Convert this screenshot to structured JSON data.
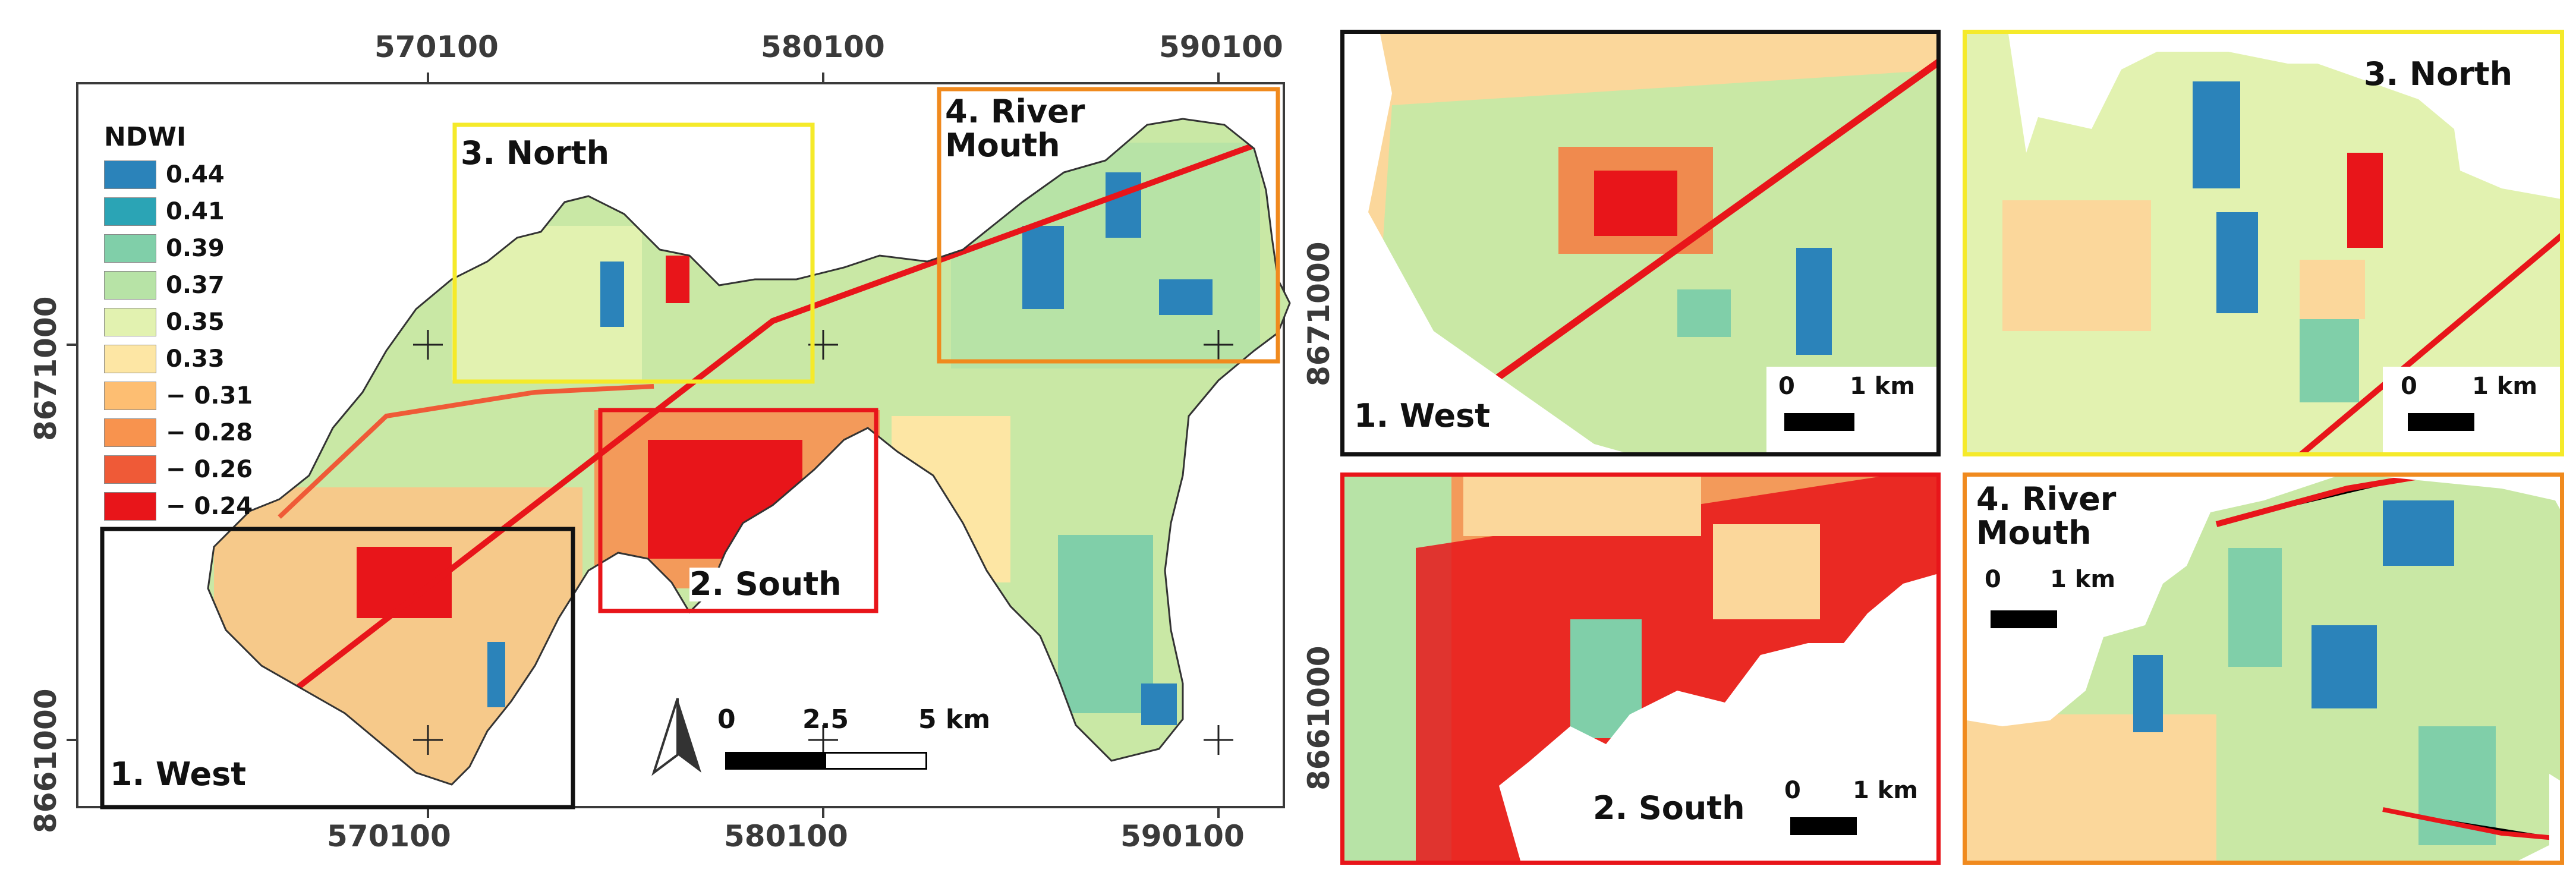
{
  "main_map": {
    "x_ticks": [
      "570100",
      "580100",
      "590100"
    ],
    "y_ticks": [
      "8671000",
      "8661000"
    ],
    "legend": {
      "title": "NDWI",
      "items": [
        {
          "label": "0.44",
          "color": "#2b83ba"
        },
        {
          "label": "0.41",
          "color": "#2ba4b5"
        },
        {
          "label": "0.39",
          "color": "#80cfa9"
        },
        {
          "label": "0.37",
          "color": "#b7e3a6"
        },
        {
          "label": "0.35",
          "color": "#e2f2b0"
        },
        {
          "label": "0.33",
          "color": "#fde6a4"
        },
        {
          "label": "− 0.31",
          "color": "#fdbe72"
        },
        {
          "label": "− 0.28",
          "color": "#f8934e"
        },
        {
          "label": "− 0.26",
          "color": "#ef5a37"
        },
        {
          "label": "− 0.24",
          "color": "#e8151a"
        }
      ]
    },
    "boxes": {
      "west": "1. West",
      "south": "2. South",
      "north": "3. North",
      "river_mouth": "4. River\nMouth"
    },
    "scale_bar": {
      "labels": [
        "0",
        "2.5",
        "5 km"
      ]
    },
    "north_arrow": "north-arrow-icon"
  },
  "panels": {
    "west": {
      "label": "1. West",
      "scale": [
        "0",
        "1 km"
      ],
      "border_color": "#111111",
      "y_tick": "8671000"
    },
    "north": {
      "label": "3. North",
      "scale": [
        "0",
        "1 km"
      ],
      "border_color": "#f5ea2a"
    },
    "south": {
      "label": "2. South",
      "scale": [
        "0",
        "1 km"
      ],
      "border_color": "#e8151a",
      "y_tick": "8661000"
    },
    "river_mouth": {
      "label": "4. River\nMouth",
      "scale": [
        "0",
        "1 km"
      ],
      "border_color": "#f08a1e"
    }
  },
  "colors": {
    "frame": "#3a3a3a",
    "box_west": "#111111",
    "box_south": "#e8151a",
    "box_north": "#f5ea2a",
    "box_river_mouth": "#f08a1e"
  }
}
